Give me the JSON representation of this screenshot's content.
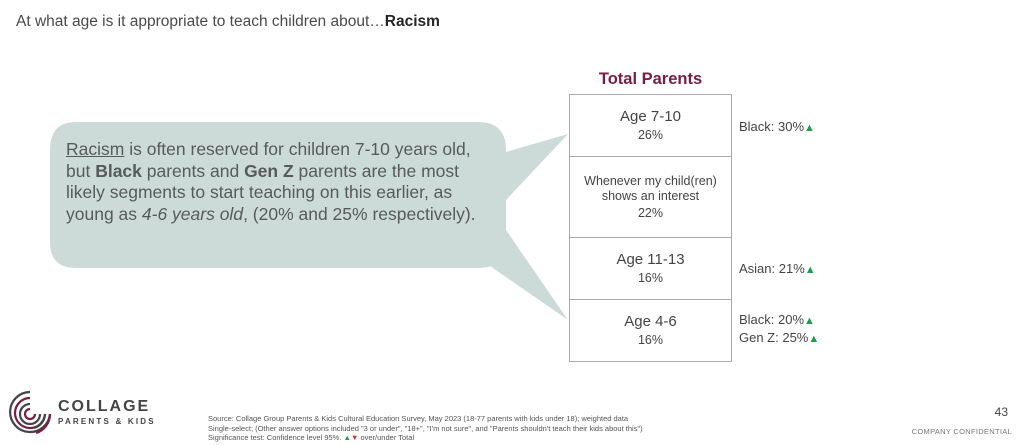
{
  "header": {
    "title_prefix": "At what age is it appropriate to teach children about…",
    "title_topic": "Racism"
  },
  "callout": {
    "p1_underline": "Racism",
    "p2": " is often reserved for children 7-10 years old, but ",
    "p3_bold": "Black",
    "p4": " parents and ",
    "p5_bold": "Gen Z",
    "p6": " parents are the most likely segments to start teaching on this earlier, as young as ",
    "p7_italic": "4-6 years old",
    "p8": ", (20% and 25% respectively)."
  },
  "table": {
    "column_title": "Total Parents",
    "rows": [
      {
        "label": "Age 7-10",
        "pct": "26%"
      },
      {
        "label": "Whenever my child(ren) shows an interest",
        "pct": "22%"
      },
      {
        "label": "Age 11-13",
        "pct": "16%"
      },
      {
        "label": "Age 4-6",
        "pct": "16%"
      }
    ]
  },
  "notes": {
    "row1": "Black: 30%",
    "row3": "Asian: 21%",
    "row4a": "Black: 20%",
    "row4b": "Gen Z: 25%",
    "up_arrow": "▲"
  },
  "colors": {
    "accent": "#7a1d43",
    "bubble": "#cddbd8",
    "up": "#1e9e4a",
    "down": "#c0392b"
  },
  "logo": {
    "brand": "COLLAGE",
    "sub": "PARENTS & KIDS",
    "icon": "fingerprint-logo-icon"
  },
  "footer": {
    "source_line1": "Source: Collage Group Parents & Kids Cultural Education Survey, May 2023 (18-77 parents with kids under 18); weighted data",
    "source_line2": "Single-select; (Other answer options included \"3 or under\", \"18+\", \"I'm not sure\", and \"Parents shouldn't teach their kids about this\")",
    "source_line3_prefix": "Significance test: Confidence level 95%. ",
    "source_line3_up": "▲",
    "source_line3_down": "▼",
    "source_line3_suffix": " over/under Total",
    "page_number": "43",
    "confidential": "COMPANY CONFIDENTIAL"
  }
}
